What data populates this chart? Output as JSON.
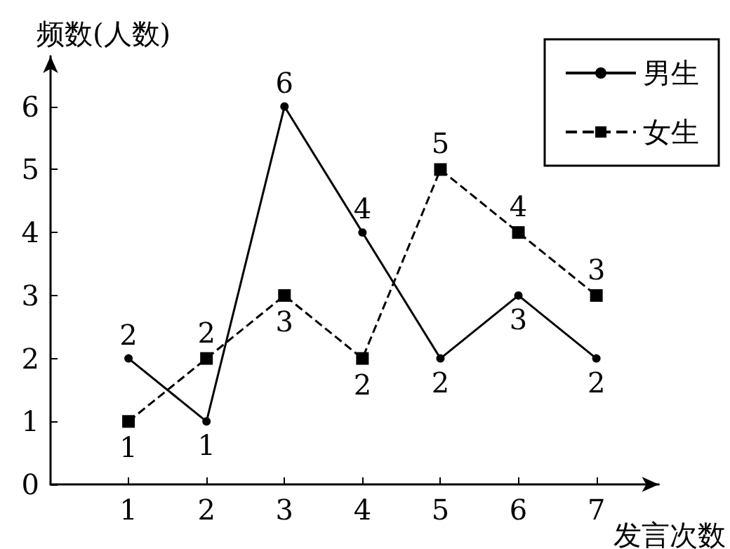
{
  "chart_data": {
    "type": "line",
    "xlabel": "发言次数",
    "ylabel": "频数(人数)",
    "x": [
      1,
      2,
      3,
      4,
      5,
      6,
      7
    ],
    "series": [
      {
        "name": "男生",
        "color": "#000000",
        "values": [
          2,
          1,
          6,
          4,
          2,
          3,
          2
        ],
        "marker": "circle",
        "line_style": "solid"
      },
      {
        "name": "女生",
        "color": "#000000",
        "values": [
          1,
          2,
          3,
          2,
          5,
          4,
          3
        ],
        "marker": "square",
        "line_style": "dashed"
      }
    ],
    "xlim": [
      0,
      7.8
    ],
    "xticks": [
      1,
      2,
      3,
      4,
      5,
      6,
      7
    ],
    "ylim": [
      0,
      6.8
    ],
    "yticks": [
      0,
      1,
      2,
      3,
      4,
      5,
      6
    ],
    "grid": false,
    "legend": "top right",
    "data_labels": true
  }
}
